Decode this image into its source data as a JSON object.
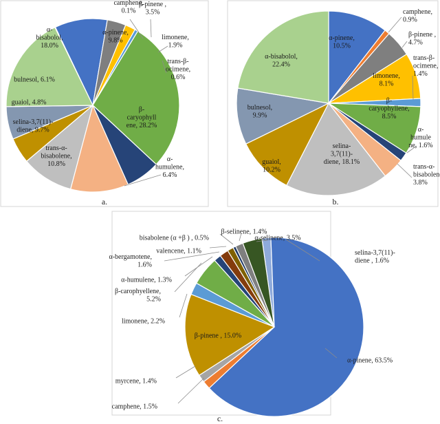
{
  "chart_data": [
    {
      "type": "pie",
      "panel_label": "a.",
      "slices": [
        {
          "label": "camphene,\n0.1%",
          "value": 0.1,
          "color": "#a5a5a5"
        },
        {
          "label": "α-pinene,\n9.8%",
          "value": 9.8,
          "color": "#4472c4"
        },
        {
          "label": "β-pinene ,\n3.5%",
          "value": 3.5,
          "color": "#7f7f7f"
        },
        {
          "label": "limonene,\n1.9%",
          "value": 1.9,
          "color": "#ffc000"
        },
        {
          "label": "trans-β-\nocimene,\n0.6%",
          "value": 0.6,
          "color": "#5b9bd5"
        },
        {
          "label": "β-\ncaryophyll\nene, 28.2%",
          "value": 28.2,
          "color": "#70ad47"
        },
        {
          "label": "α-\nhumulene,\n6.4%",
          "value": 6.4,
          "color": "#264478"
        },
        {
          "label": "trans-α-\nbisabolene,\n10.8%",
          "value": 10.8,
          "color": "#f4b183"
        },
        {
          "label": "selina-3,7(11)-\ndiene, 9.7%",
          "value": 9.7,
          "color": "#bfbfbf"
        },
        {
          "label": "guaiol, 4.8%",
          "value": 4.8,
          "color": "#bf9000"
        },
        {
          "label": "bulnesol, 6.1%",
          "value": 6.1,
          "color": "#8497b0"
        },
        {
          "label": "α-\nbisabolol,\n18.0%",
          "value": 18.0,
          "color": "#a9d18e"
        }
      ]
    },
    {
      "type": "pie",
      "panel_label": "b.",
      "slices": [
        {
          "label": "α-pinene,\n10.5%",
          "value": 10.5,
          "color": "#4472c4"
        },
        {
          "label": "camphene,\n0.9%",
          "value": 0.9,
          "color": "#ed7d31"
        },
        {
          "label": "β-pinene ,\n4.7%",
          "value": 4.7,
          "color": "#7f7f7f"
        },
        {
          "label": "limonene,\n8.1%",
          "value": 8.1,
          "color": "#ffc000"
        },
        {
          "label": "trans-β-\nocimene,\n1.4%",
          "value": 1.4,
          "color": "#5b9bd5"
        },
        {
          "label": "β-\ncaryophyllene,\n8.5%",
          "value": 8.5,
          "color": "#70ad47"
        },
        {
          "label": "α-\nhumule\nne, 1.6%",
          "value": 1.6,
          "color": "#264478"
        },
        {
          "label": "trans-α-\nbisabolene,\n3.8%",
          "value": 3.8,
          "color": "#f4b183"
        },
        {
          "label": "selina-\n3,7(11)-\ndiene, 18.1%",
          "value": 18.1,
          "color": "#bfbfbf"
        },
        {
          "label": "guaiol,\n10.2%",
          "value": 10.2,
          "color": "#bf9000"
        },
        {
          "label": "bulnesol,\n9.9%",
          "value": 9.9,
          "color": "#8497b0"
        },
        {
          "label": "α-bisabolol,\n22.4%",
          "value": 22.4,
          "color": "#a9d18e"
        }
      ]
    },
    {
      "type": "pie",
      "panel_label": "c.",
      "slices": [
        {
          "label": "selina-3,7(11)-\ndiene , 1.6%",
          "value": 1.6,
          "color": "#8eaadb"
        },
        {
          "label": "α-pinene, 63.5%",
          "value": 63.5,
          "color": "#4472c4"
        },
        {
          "label": "camphene, 1.5%",
          "value": 1.5,
          "color": "#ed7d31"
        },
        {
          "label": "myrcene, 1.4%",
          "value": 1.4,
          "color": "#a5a5a5"
        },
        {
          "label": "β-pinene , 15.0%",
          "value": 15.0,
          "color": "#bf9000"
        },
        {
          "label": "limonene, 2.2%",
          "value": 2.2,
          "color": "#5b9bd5"
        },
        {
          "label": "β-carophyellene,\n5.2%",
          "value": 5.2,
          "color": "#70ad47"
        },
        {
          "label": "α-humulene, 1.3%",
          "value": 1.3,
          "color": "#264478"
        },
        {
          "label": "α-bergamotene,\n1.6%",
          "value": 1.6,
          "color": "#843c0c"
        },
        {
          "label": "valencene, 1.1%",
          "value": 1.1,
          "color": "#7f6000"
        },
        {
          "label": "bisabolene (α +β ) , 0.5%",
          "value": 0.5,
          "color": "#1f3864"
        },
        {
          "label": "β-selinene, 1.4%",
          "value": 1.4,
          "color": "#7f7f7f"
        },
        {
          "label": "α-selinene, 3.5%",
          "value": 3.5,
          "color": "#375623"
        }
      ]
    }
  ]
}
